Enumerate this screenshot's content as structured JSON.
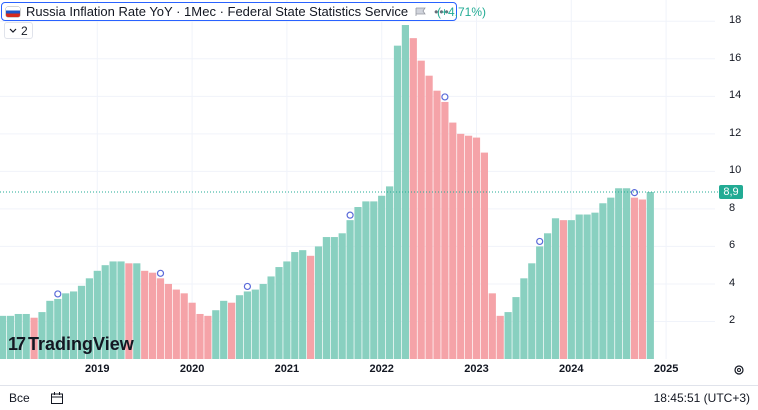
{
  "legend": {
    "title": "Russia Inflation Rate YoY · 1Мес · Federal State Statistics Service",
    "dots": "•••",
    "change": "(+4,71%)"
  },
  "collapse": {
    "count": "2"
  },
  "logo": {
    "text": "TradingView"
  },
  "last_value": "8,9",
  "bottom": {
    "range": "Все",
    "clock": "18:45:51 (UTC+3)"
  },
  "colors": {
    "up": "#89d0c0",
    "down": "#f5a3a8",
    "accent": "#22ab94",
    "grid": "#f0f3fa"
  },
  "chart_data": {
    "type": "bar",
    "title": "Russia Inflation Rate YoY",
    "xlabel": "",
    "ylabel": "",
    "ylim": [
      0,
      19
    ],
    "y_ticks": [
      2,
      4,
      6,
      8,
      10,
      12,
      14,
      16,
      18
    ],
    "y_tick_labels": [
      "2",
      "4",
      "6",
      "8",
      "10",
      "12",
      "14",
      "16",
      "18"
    ],
    "x_tick_labels": [
      "2019",
      "2020",
      "2021",
      "2022",
      "2023",
      "2024",
      "2025"
    ],
    "start": "2018-01",
    "values": [
      2.3,
      2.3,
      2.4,
      2.4,
      2.2,
      2.5,
      3.1,
      3.2,
      3.5,
      3.6,
      3.9,
      4.3,
      4.7,
      5.0,
      5.2,
      5.2,
      5.1,
      5.1,
      4.7,
      4.6,
      4.3,
      4.0,
      3.7,
      3.5,
      3.0,
      2.4,
      2.3,
      2.6,
      3.1,
      3.0,
      3.4,
      3.6,
      3.7,
      4.0,
      4.4,
      4.9,
      5.2,
      5.7,
      5.8,
      5.5,
      6.0,
      6.5,
      6.5,
      6.7,
      7.4,
      8.1,
      8.4,
      8.4,
      8.7,
      9.2,
      16.7,
      17.8,
      17.1,
      15.9,
      15.1,
      14.3,
      13.7,
      12.6,
      12.0,
      11.9,
      11.8,
      11.0,
      3.5,
      2.3,
      2.5,
      3.3,
      4.3,
      5.1,
      6.0,
      6.7,
      7.5,
      7.4,
      7.4,
      7.7,
      7.7,
      7.8,
      8.3,
      8.6,
      9.1,
      9.1,
      8.6,
      8.5,
      8.9
    ],
    "markers": [
      "2018-08",
      "2019-09",
      "2020-08",
      "2021-09",
      "2022-09",
      "2023-09",
      "2024-09"
    ],
    "last_value": 8.9
  }
}
